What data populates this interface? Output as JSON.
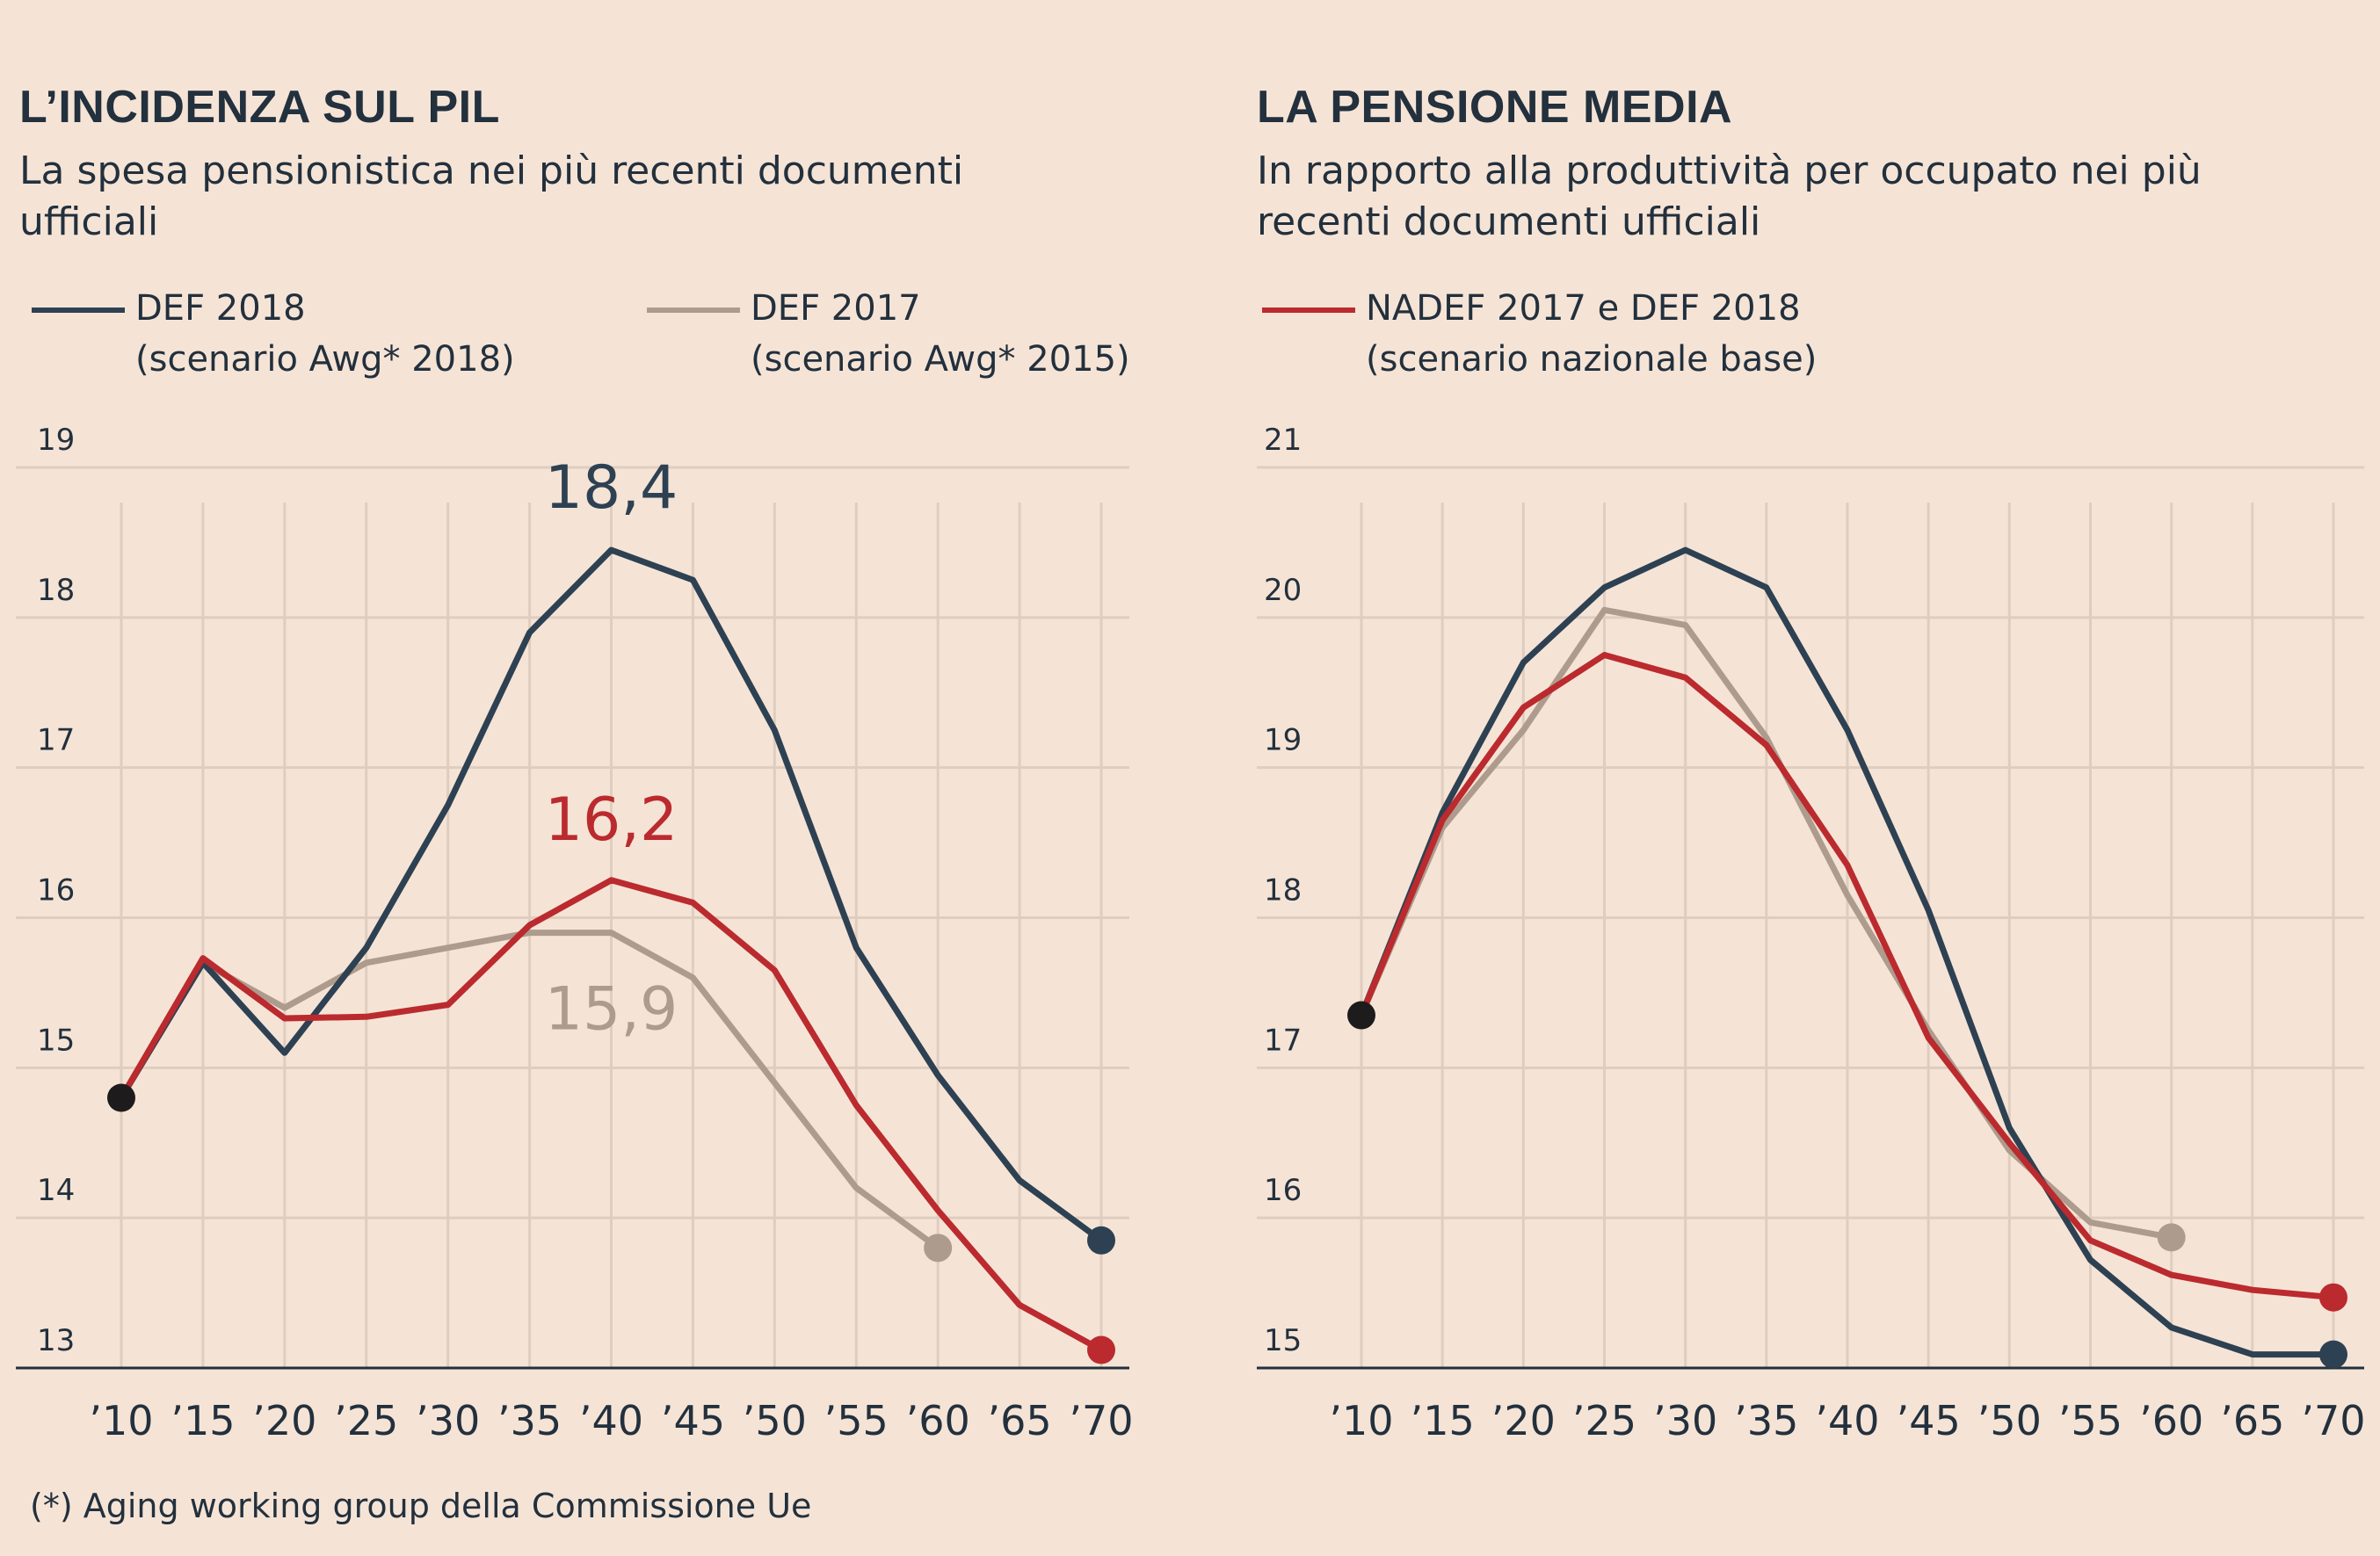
{
  "left": {
    "title": "L’INCIDENZA  SUL PIL",
    "subtitle": [
      "La spesa pensionistica nei più recenti documenti",
      "ufficiali"
    ],
    "legend": [
      {
        "color": "#2d4152",
        "lines": [
          "DEF 2018",
          "(scenario Awg* 2018)"
        ]
      },
      {
        "color": "#ad9c8d",
        "lines": [
          "DEF 2017",
          "(scenario Awg* 2015)"
        ]
      }
    ]
  },
  "right": {
    "title": "LA PENSIONE MEDIA",
    "subtitle": [
      "In rapporto alla produttività  per occupato nei più",
      "recenti documenti ufficiali"
    ],
    "legend": [
      {
        "color": "#bb2a2e",
        "lines": [
          "NADEF 2017 e DEF 2018",
          "(scenario nazionale base)"
        ]
      }
    ]
  },
  "footnote": "(*) Aging working group della Commissione Ue",
  "chart_data": [
    {
      "type": "line",
      "x": [
        "’10",
        "’15",
        "’20",
        "’25",
        "’30",
        "’35",
        "’40",
        "’45",
        "’50",
        "’55",
        "’60",
        "’65",
        "’70"
      ],
      "ylim": [
        13,
        19
      ],
      "yticks": [
        13,
        14,
        15,
        16,
        17,
        18,
        19
      ],
      "grid": true,
      "series": [
        {
          "name": "DEF 2018",
          "color": "#2d4152",
          "values": [
            14.8,
            15.7,
            15.1,
            15.8,
            16.75,
            17.9,
            18.45,
            18.25,
            17.25,
            15.8,
            14.95,
            14.25,
            13.85
          ]
        },
        {
          "name": "DEF 2017",
          "color": "#ad9c8d",
          "values": [
            14.8,
            15.7,
            15.4,
            15.7,
            15.8,
            15.9,
            15.9,
            15.6,
            14.9,
            14.2,
            13.8,
            null,
            null
          ]
        },
        {
          "color": "#bb2a2e",
          "values": [
            14.8,
            15.73,
            15.33,
            15.34,
            15.42,
            15.95,
            16.25,
            16.1,
            15.65,
            14.75,
            14.05,
            13.42,
            13.12
          ]
        }
      ],
      "annotations": [
        {
          "text": "18,4",
          "x": "’40",
          "series": "DEF 2018",
          "color": "#2d4152"
        },
        {
          "text": "16,2",
          "x": "’40",
          "color": "#bb2a2e"
        },
        {
          "text": "15,9",
          "x": "’40",
          "series": "DEF 2017",
          "color": "#ad9c8d"
        }
      ]
    },
    {
      "type": "line",
      "x": [
        "’10",
        "’15",
        "’20",
        "’25",
        "’30",
        "’35",
        "’40",
        "’45",
        "’50",
        "’55",
        "’60",
        "’65",
        "’70"
      ],
      "ylim": [
        15,
        21
      ],
      "yticks": [
        15,
        16,
        17,
        18,
        19,
        20,
        21
      ],
      "grid": true,
      "series": [
        {
          "color": "#2d4152",
          "values": [
            17.35,
            18.7,
            19.7,
            20.2,
            20.45,
            20.2,
            19.25,
            18.05,
            16.6,
            15.72,
            15.27,
            15.09,
            15.09
          ]
        },
        {
          "color": "#ad9c8d",
          "values": [
            17.35,
            18.6,
            19.25,
            20.05,
            19.95,
            19.2,
            18.15,
            17.25,
            16.45,
            15.97,
            15.87,
            null,
            null
          ]
        },
        {
          "name": "NADEF 2017 e DEF 2018",
          "color": "#bb2a2e",
          "values": [
            17.35,
            18.65,
            19.4,
            19.75,
            19.6,
            19.15,
            18.35,
            17.2,
            16.5,
            15.85,
            15.62,
            15.52,
            15.47
          ]
        }
      ]
    }
  ]
}
